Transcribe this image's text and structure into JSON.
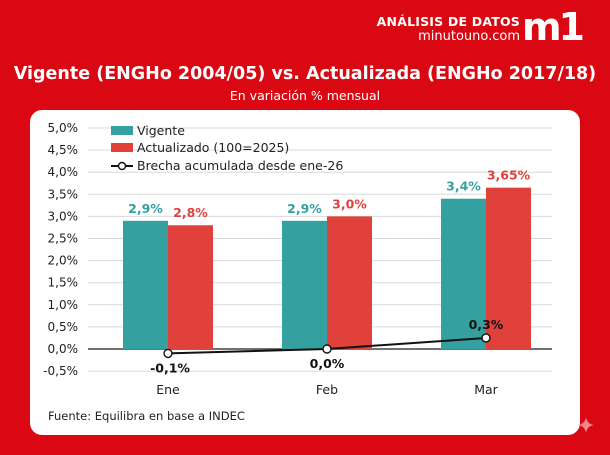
{
  "brand": {
    "tagline": "ANÁLISIS DE DATOS",
    "site": "minutouno.com",
    "logo": "m1"
  },
  "colors": {
    "background": "#d90812",
    "vigente": "#35a0a0",
    "actualizado": "#e0413a",
    "brecha": "#111111"
  },
  "chart_data": {
    "type": "bar",
    "title": "Vigente (ENGHo 2004/05) vs. Actualizada (ENGHo 2017/18)",
    "subtitle": "En variación % mensual",
    "categories": [
      "Ene",
      "Feb",
      "Mar"
    ],
    "series": [
      {
        "name": "Vigente",
        "type": "bar",
        "values": [
          2.9,
          2.9,
          3.4
        ],
        "labels": [
          "2,9%",
          "2,9%",
          "3,4%"
        ]
      },
      {
        "name": "Actualizado (100=2025)",
        "type": "bar",
        "values": [
          2.8,
          3.0,
          3.65
        ],
        "labels": [
          "2,8%",
          "3,0%",
          "3,65%"
        ]
      },
      {
        "name": "Brecha acumulada desde ene-26",
        "type": "line",
        "values": [
          -0.1,
          0.0,
          0.25
        ],
        "labels": [
          "-0,1%",
          "0,0%",
          "0,3%"
        ]
      }
    ],
    "ylim": [
      -0.5,
      5.0
    ],
    "yticks": [
      5.0,
      4.5,
      4.0,
      3.5,
      3.0,
      2.5,
      2.0,
      1.5,
      1.0,
      0.5,
      0.0,
      -0.5
    ],
    "ytick_labels": [
      "5,0%",
      "4,5%",
      "4,0%",
      "3,5%",
      "3,0%",
      "2,5%",
      "2,0%",
      "1,5%",
      "1,0%",
      "0,5%",
      "0,0%",
      "-0,5%"
    ],
    "xlabel": "",
    "ylabel": "",
    "grid": true,
    "legend": "top-left"
  },
  "source": "Fuente: Equilibra en base a INDEC"
}
